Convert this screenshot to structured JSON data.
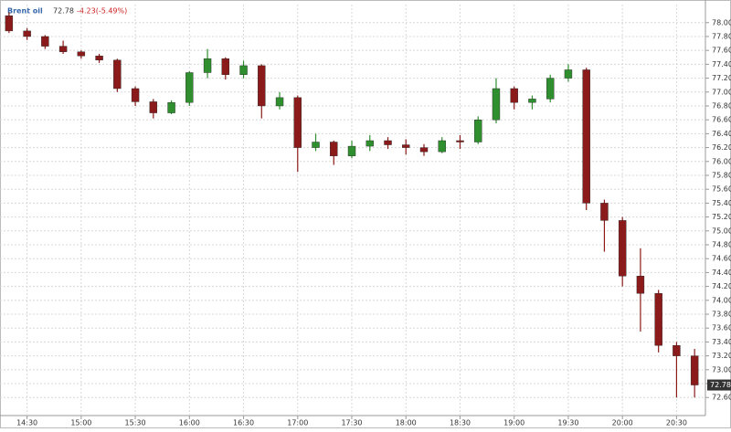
{
  "chart_data": {
    "type": "candlestick",
    "title": "Brent oil",
    "last": 72.78,
    "change": "-4.23(-5.49%)",
    "x": [
      "14:20",
      "14:30",
      "14:40",
      "14:50",
      "15:00",
      "15:10",
      "15:20",
      "15:30",
      "15:40",
      "15:50",
      "16:00",
      "16:10",
      "16:20",
      "16:30",
      "16:40",
      "16:50",
      "17:00",
      "17:10",
      "17:20",
      "17:30",
      "17:40",
      "17:50",
      "18:00",
      "18:10",
      "18:20",
      "18:30",
      "18:40",
      "18:50",
      "19:00",
      "19:10",
      "19:20",
      "19:30",
      "19:40",
      "19:50",
      "20:00",
      "20:10",
      "20:20",
      "20:30",
      "20:40"
    ],
    "open": [
      78.1,
      77.88,
      77.8,
      77.66,
      77.58,
      77.52,
      77.46,
      77.05,
      76.86,
      76.7,
      76.85,
      77.28,
      77.48,
      77.25,
      77.38,
      76.8,
      76.92,
      76.2,
      76.28,
      76.08,
      76.22,
      76.3,
      76.24,
      76.2,
      76.14,
      76.3,
      76.28,
      76.6,
      77.05,
      76.85,
      76.9,
      77.2,
      77.32,
      75.4,
      75.15,
      74.35,
      74.1,
      73.35,
      73.2
    ],
    "high": [
      78.15,
      77.92,
      77.82,
      77.74,
      77.6,
      77.55,
      77.48,
      77.08,
      76.9,
      76.88,
      77.3,
      77.62,
      77.5,
      77.45,
      77.4,
      77.0,
      76.95,
      76.4,
      76.3,
      76.3,
      76.38,
      76.35,
      76.32,
      76.25,
      76.35,
      76.38,
      76.65,
      77.2,
      77.08,
      76.95,
      77.25,
      77.4,
      77.35,
      75.45,
      75.2,
      74.75,
      74.15,
      73.4,
      73.3
    ],
    "low": [
      77.85,
      77.75,
      77.62,
      77.55,
      77.48,
      77.42,
      77.0,
      76.8,
      76.62,
      76.68,
      76.8,
      77.2,
      77.18,
      77.2,
      76.62,
      76.75,
      75.85,
      76.15,
      75.95,
      76.05,
      76.15,
      76.18,
      76.1,
      76.08,
      76.12,
      76.18,
      76.25,
      76.55,
      76.75,
      76.75,
      76.85,
      77.15,
      75.3,
      74.7,
      74.2,
      73.55,
      73.25,
      72.6,
      72.6
    ],
    "close": [
      77.88,
      77.8,
      77.66,
      77.58,
      77.52,
      77.46,
      77.05,
      76.86,
      76.7,
      76.85,
      77.28,
      77.48,
      77.25,
      77.38,
      76.8,
      76.92,
      76.2,
      76.28,
      76.08,
      76.22,
      76.3,
      76.24,
      76.2,
      76.14,
      76.3,
      76.28,
      76.6,
      77.05,
      76.85,
      76.9,
      77.2,
      77.32,
      75.4,
      75.15,
      74.35,
      74.1,
      73.35,
      73.2,
      72.78
    ],
    "up_color": "#2f8f2f",
    "down_color": "#8b1a1a",
    "xlim": [
      "14:15",
      "20:46"
    ],
    "xticks": [
      "14:30",
      "15:00",
      "15:30",
      "16:00",
      "16:30",
      "17:00",
      "17:30",
      "18:00",
      "18:30",
      "19:00",
      "19:30",
      "20:00",
      "20:30"
    ],
    "ylim": [
      72.34,
      78.26
    ],
    "yticks": [
      {
        "value": 72.6,
        "label": "72.60"
      },
      {
        "value": 72.8,
        "label": "72.80"
      },
      {
        "value": 73,
        "label": "73.00"
      },
      {
        "value": 73.2,
        "label": "73.20"
      },
      {
        "value": 73.4,
        "label": "73.40"
      },
      {
        "value": 73.6,
        "label": "73.60"
      },
      {
        "value": 73.8,
        "label": "73.80"
      },
      {
        "value": 74,
        "label": "74.00"
      },
      {
        "value": 74.2,
        "label": "74.20"
      },
      {
        "value": 74.4,
        "label": "74.40"
      },
      {
        "value": 74.6,
        "label": "74.60"
      },
      {
        "value": 74.8,
        "label": "74.80"
      },
      {
        "value": 75,
        "label": "75.00"
      },
      {
        "value": 75.2,
        "label": "75.20"
      },
      {
        "value": 75.4,
        "label": "75.40"
      },
      {
        "value": 75.6,
        "label": "75.60"
      },
      {
        "value": 75.8,
        "label": "75.80"
      },
      {
        "value": 76,
        "label": "76.00"
      },
      {
        "value": 76.2,
        "label": "76.20"
      },
      {
        "value": 76.4,
        "label": "76.40"
      },
      {
        "value": 76.6,
        "label": "76.60"
      },
      {
        "value": 76.8,
        "label": "76.80"
      },
      {
        "value": 77,
        "label": "77.00"
      },
      {
        "value": 77.2,
        "label": "77.20"
      },
      {
        "value": 77.4,
        "label": "77.40"
      },
      {
        "value": 77.6,
        "label": "77.60"
      },
      {
        "value": 77.8,
        "label": "77.80"
      },
      {
        "value": 78,
        "label": "78.00"
      }
    ],
    "grid": true
  }
}
